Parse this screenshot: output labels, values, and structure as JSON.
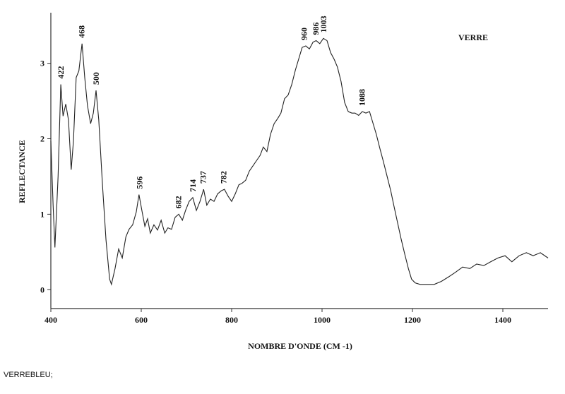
{
  "chart_data": {
    "type": "line",
    "annotation": "VERRE",
    "xlabel": "NOMBRE D'ONDE (CM -1)",
    "ylabel": "REFLECTANCE",
    "caption": "VERREBLEU;",
    "x": [
      400,
      405,
      409,
      416,
      422,
      427,
      433,
      439,
      445,
      450,
      456,
      462,
      469,
      475,
      481,
      488,
      494,
      500,
      506,
      514,
      522,
      530,
      534,
      542,
      550,
      558,
      566,
      573,
      581,
      589,
      595,
      602,
      608,
      614,
      620,
      628,
      636,
      644,
      652,
      659,
      667,
      675,
      683,
      691,
      698,
      706,
      714,
      722,
      730,
      738,
      745,
      753,
      761,
      769,
      777,
      784,
      792,
      800,
      808,
      816,
      823,
      831,
      839,
      847,
      855,
      863,
      870,
      878,
      886,
      894,
      902,
      909,
      917,
      925,
      933,
      941,
      948,
      956,
      964,
      972,
      980,
      987,
      995,
      1003,
      1011,
      1019,
      1027,
      1034,
      1042,
      1050,
      1058,
      1066,
      1073,
      1081,
      1089,
      1097,
      1105,
      1113,
      1120,
      1128,
      1136,
      1144,
      1152,
      1159,
      1167,
      1175,
      1183,
      1191,
      1198,
      1206,
      1217,
      1233,
      1248,
      1264,
      1280,
      1295,
      1311,
      1327,
      1342,
      1358,
      1373,
      1389,
      1405,
      1420,
      1436,
      1452,
      1467,
      1483,
      1500
    ],
    "series": [
      {
        "name": "VERREBLEU",
        "color": "#222222",
        "values": [
          1.97,
          1.12,
          0.56,
          1.5,
          2.72,
          2.3,
          2.46,
          2.25,
          1.59,
          1.97,
          2.81,
          2.9,
          3.26,
          2.81,
          2.44,
          2.2,
          2.34,
          2.64,
          2.25,
          1.41,
          0.66,
          0.14,
          0.07,
          0.28,
          0.54,
          0.42,
          0.7,
          0.8,
          0.86,
          1.03,
          1.26,
          1.03,
          0.84,
          0.94,
          0.75,
          0.86,
          0.79,
          0.92,
          0.75,
          0.82,
          0.8,
          0.96,
          1.0,
          0.92,
          1.05,
          1.17,
          1.22,
          1.05,
          1.17,
          1.33,
          1.12,
          1.2,
          1.17,
          1.27,
          1.31,
          1.33,
          1.24,
          1.17,
          1.27,
          1.39,
          1.41,
          1.45,
          1.57,
          1.64,
          1.71,
          1.78,
          1.89,
          1.83,
          2.06,
          2.2,
          2.27,
          2.34,
          2.53,
          2.58,
          2.72,
          2.91,
          3.05,
          3.21,
          3.23,
          3.19,
          3.28,
          3.3,
          3.26,
          3.33,
          3.3,
          3.14,
          3.05,
          2.95,
          2.76,
          2.48,
          2.36,
          2.34,
          2.34,
          2.31,
          2.36,
          2.34,
          2.36,
          2.2,
          2.06,
          1.87,
          1.69,
          1.5,
          1.31,
          1.11,
          0.89,
          0.67,
          0.47,
          0.28,
          0.14,
          0.09,
          0.07,
          0.07,
          0.07,
          0.11,
          0.17,
          0.23,
          0.3,
          0.28,
          0.34,
          0.32,
          0.37,
          0.42,
          0.45,
          0.37,
          0.45,
          0.49,
          0.45,
          0.49,
          0.42
        ]
      }
    ],
    "peaks": [
      422,
      468,
      500,
      596,
      682,
      714,
      737,
      782,
      960,
      986,
      1003,
      1088
    ],
    "xlim": [
      400,
      1500
    ],
    "ylim": [
      -0.25,
      3.67
    ],
    "xticks": [
      400,
      600,
      800,
      1000,
      1200,
      1400
    ],
    "yticks": [
      0,
      1,
      2,
      3
    ]
  }
}
